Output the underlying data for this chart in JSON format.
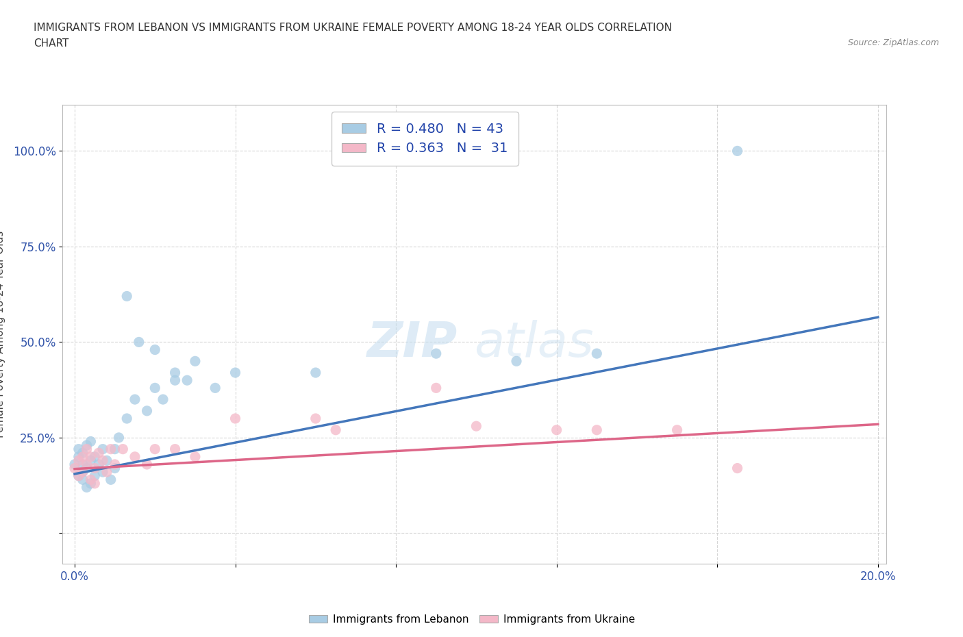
{
  "title_line1": "IMMIGRANTS FROM LEBANON VS IMMIGRANTS FROM UKRAINE FEMALE POVERTY AMONG 18-24 YEAR OLDS CORRELATION",
  "title_line2": "CHART",
  "source_text": "Source: ZipAtlas.com",
  "ylabel": "Female Poverty Among 18-24 Year Olds",
  "xlim_min": -0.003,
  "xlim_max": 0.202,
  "ylim_min": -0.08,
  "ylim_max": 1.12,
  "lebanon_color": "#a8cce4",
  "ukraine_color": "#f4b8c8",
  "lebanon_line_color": "#4477bb",
  "ukraine_line_color": "#dd6688",
  "lebanon_R": 0.48,
  "lebanon_N": 43,
  "ukraine_R": 0.363,
  "ukraine_N": 31,
  "background_color": "#ffffff",
  "legend_text_color": "#2244aa",
  "watermark_color": "#ddeeff",
  "lebanon_scatter_x": [
    0.0,
    0.001,
    0.001,
    0.001,
    0.002,
    0.002,
    0.002,
    0.002,
    0.003,
    0.003,
    0.003,
    0.004,
    0.004,
    0.004,
    0.005,
    0.005,
    0.006,
    0.007,
    0.007,
    0.008,
    0.009,
    0.01,
    0.01,
    0.011,
    0.013,
    0.015,
    0.018,
    0.02,
    0.022,
    0.025,
    0.028,
    0.03,
    0.035,
    0.04,
    0.013,
    0.016,
    0.02,
    0.025,
    0.06,
    0.09,
    0.11,
    0.13,
    0.165
  ],
  "lebanon_scatter_y": [
    0.18,
    0.2,
    0.15,
    0.22,
    0.18,
    0.16,
    0.21,
    0.14,
    0.17,
    0.23,
    0.12,
    0.19,
    0.13,
    0.24,
    0.2,
    0.15,
    0.18,
    0.22,
    0.16,
    0.19,
    0.14,
    0.22,
    0.17,
    0.25,
    0.3,
    0.35,
    0.32,
    0.38,
    0.35,
    0.42,
    0.4,
    0.45,
    0.38,
    0.42,
    0.62,
    0.5,
    0.48,
    0.4,
    0.42,
    0.47,
    0.45,
    0.47,
    1.0
  ],
  "ukraine_scatter_x": [
    0.0,
    0.001,
    0.001,
    0.002,
    0.002,
    0.003,
    0.003,
    0.004,
    0.004,
    0.005,
    0.005,
    0.006,
    0.007,
    0.008,
    0.009,
    0.01,
    0.012,
    0.015,
    0.018,
    0.02,
    0.025,
    0.03,
    0.04,
    0.06,
    0.065,
    0.09,
    0.1,
    0.12,
    0.13,
    0.15,
    0.165
  ],
  "ukraine_scatter_y": [
    0.17,
    0.19,
    0.15,
    0.2,
    0.16,
    0.22,
    0.18,
    0.2,
    0.14,
    0.17,
    0.13,
    0.21,
    0.19,
    0.16,
    0.22,
    0.18,
    0.22,
    0.2,
    0.18,
    0.22,
    0.22,
    0.2,
    0.3,
    0.3,
    0.27,
    0.38,
    0.28,
    0.27,
    0.27,
    0.27,
    0.17
  ],
  "leb_line_x0": 0.0,
  "leb_line_y0": 0.155,
  "leb_line_x1": 0.2,
  "leb_line_y1": 0.565,
  "ukr_line_x0": 0.0,
  "ukr_line_y0": 0.168,
  "ukr_line_x1": 0.2,
  "ukr_line_y1": 0.285
}
